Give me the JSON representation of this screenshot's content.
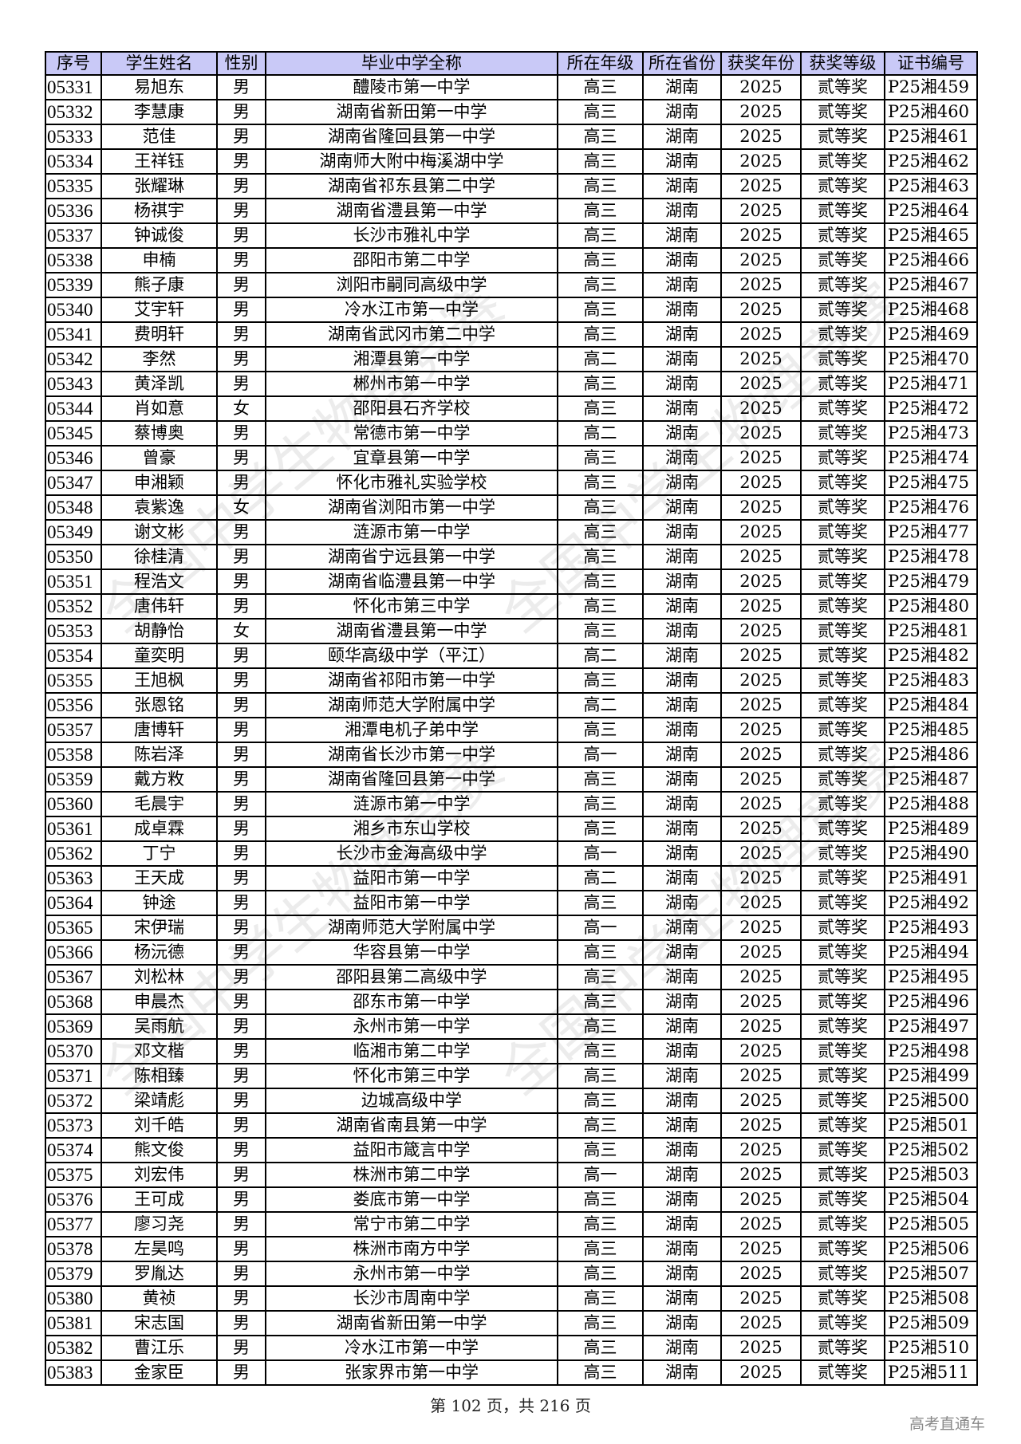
{
  "table": {
    "headers": [
      "序号",
      "学生姓名",
      "性别",
      "毕业中学全称",
      "所在年级",
      "所在省份",
      "获奖年份",
      "获奖等级",
      "证书编号"
    ],
    "rows": [
      [
        "05331",
        "易旭东",
        "男",
        "醴陵市第一中学",
        "高三",
        "湖南",
        "2025",
        "贰等奖",
        "P25湘459"
      ],
      [
        "05332",
        "李慧康",
        "男",
        "湖南省新田第一中学",
        "高三",
        "湖南",
        "2025",
        "贰等奖",
        "P25湘460"
      ],
      [
        "05333",
        "范佳",
        "男",
        "湖南省隆回县第一中学",
        "高三",
        "湖南",
        "2025",
        "贰等奖",
        "P25湘461"
      ],
      [
        "05334",
        "王祥钰",
        "男",
        "湖南师大附中梅溪湖中学",
        "高三",
        "湖南",
        "2025",
        "贰等奖",
        "P25湘462"
      ],
      [
        "05335",
        "张耀琳",
        "男",
        "湖南省祁东县第二中学",
        "高三",
        "湖南",
        "2025",
        "贰等奖",
        "P25湘463"
      ],
      [
        "05336",
        "杨祺宇",
        "男",
        "湖南省澧县第一中学",
        "高三",
        "湖南",
        "2025",
        "贰等奖",
        "P25湘464"
      ],
      [
        "05337",
        "钟诚俊",
        "男",
        "长沙市雅礼中学",
        "高三",
        "湖南",
        "2025",
        "贰等奖",
        "P25湘465"
      ],
      [
        "05338",
        "申楠",
        "男",
        "邵阳市第二中学",
        "高三",
        "湖南",
        "2025",
        "贰等奖",
        "P25湘466"
      ],
      [
        "05339",
        "熊子康",
        "男",
        "浏阳市嗣同高级中学",
        "高三",
        "湖南",
        "2025",
        "贰等奖",
        "P25湘467"
      ],
      [
        "05340",
        "艾宇轩",
        "男",
        "冷水江市第一中学",
        "高三",
        "湖南",
        "2025",
        "贰等奖",
        "P25湘468"
      ],
      [
        "05341",
        "费明轩",
        "男",
        "湖南省武冈市第二中学",
        "高三",
        "湖南",
        "2025",
        "贰等奖",
        "P25湘469"
      ],
      [
        "05342",
        "李然",
        "男",
        "湘潭县第一中学",
        "高二",
        "湖南",
        "2025",
        "贰等奖",
        "P25湘470"
      ],
      [
        "05343",
        "黄泽凯",
        "男",
        "郴州市第一中学",
        "高三",
        "湖南",
        "2025",
        "贰等奖",
        "P25湘471"
      ],
      [
        "05344",
        "肖如意",
        "女",
        "邵阳县石齐学校",
        "高三",
        "湖南",
        "2025",
        "贰等奖",
        "P25湘472"
      ],
      [
        "05345",
        "蔡博奥",
        "男",
        "常德市第一中学",
        "高二",
        "湖南",
        "2025",
        "贰等奖",
        "P25湘473"
      ],
      [
        "05346",
        "曾豪",
        "男",
        "宜章县第一中学",
        "高三",
        "湖南",
        "2025",
        "贰等奖",
        "P25湘474"
      ],
      [
        "05347",
        "申湘颖",
        "男",
        "怀化市雅礼实验学校",
        "高三",
        "湖南",
        "2025",
        "贰等奖",
        "P25湘475"
      ],
      [
        "05348",
        "袁紫逸",
        "女",
        "湖南省浏阳市第一中学",
        "高三",
        "湖南",
        "2025",
        "贰等奖",
        "P25湘476"
      ],
      [
        "05349",
        "谢文彬",
        "男",
        "涟源市第一中学",
        "高三",
        "湖南",
        "2025",
        "贰等奖",
        "P25湘477"
      ],
      [
        "05350",
        "徐桂清",
        "男",
        "湖南省宁远县第一中学",
        "高三",
        "湖南",
        "2025",
        "贰等奖",
        "P25湘478"
      ],
      [
        "05351",
        "程浩文",
        "男",
        "湖南省临澧县第一中学",
        "高三",
        "湖南",
        "2025",
        "贰等奖",
        "P25湘479"
      ],
      [
        "05352",
        "唐伟轩",
        "男",
        "怀化市第三中学",
        "高三",
        "湖南",
        "2025",
        "贰等奖",
        "P25湘480"
      ],
      [
        "05353",
        "胡静怡",
        "女",
        "湖南省澧县第一中学",
        "高三",
        "湖南",
        "2025",
        "贰等奖",
        "P25湘481"
      ],
      [
        "05354",
        "童奕明",
        "男",
        "颐华高级中学（平江）",
        "高二",
        "湖南",
        "2025",
        "贰等奖",
        "P25湘482"
      ],
      [
        "05355",
        "王旭枫",
        "男",
        "湖南省祁阳市第一中学",
        "高三",
        "湖南",
        "2025",
        "贰等奖",
        "P25湘483"
      ],
      [
        "05356",
        "张恩铭",
        "男",
        "湖南师范大学附属中学",
        "高二",
        "湖南",
        "2025",
        "贰等奖",
        "P25湘484"
      ],
      [
        "05357",
        "唐博轩",
        "男",
        "湘潭电机子弟中学",
        "高三",
        "湖南",
        "2025",
        "贰等奖",
        "P25湘485"
      ],
      [
        "05358",
        "陈岩泽",
        "男",
        "湖南省长沙市第一中学",
        "高一",
        "湖南",
        "2025",
        "贰等奖",
        "P25湘486"
      ],
      [
        "05359",
        "戴方敉",
        "男",
        "湖南省隆回县第一中学",
        "高三",
        "湖南",
        "2025",
        "贰等奖",
        "P25湘487"
      ],
      [
        "05360",
        "毛晨宇",
        "男",
        "涟源市第一中学",
        "高三",
        "湖南",
        "2025",
        "贰等奖",
        "P25湘488"
      ],
      [
        "05361",
        "成卓霖",
        "男",
        "湘乡市东山学校",
        "高三",
        "湖南",
        "2025",
        "贰等奖",
        "P25湘489"
      ],
      [
        "05362",
        "丁宁",
        "男",
        "长沙市金海高级中学",
        "高一",
        "湖南",
        "2025",
        "贰等奖",
        "P25湘490"
      ],
      [
        "05363",
        "王天成",
        "男",
        "益阳市第一中学",
        "高二",
        "湖南",
        "2025",
        "贰等奖",
        "P25湘491"
      ],
      [
        "05364",
        "钟途",
        "男",
        "益阳市第一中学",
        "高三",
        "湖南",
        "2025",
        "贰等奖",
        "P25湘492"
      ],
      [
        "05365",
        "宋伊瑞",
        "男",
        "湖南师范大学附属中学",
        "高一",
        "湖南",
        "2025",
        "贰等奖",
        "P25湘493"
      ],
      [
        "05366",
        "杨沅德",
        "男",
        "华容县第一中学",
        "高三",
        "湖南",
        "2025",
        "贰等奖",
        "P25湘494"
      ],
      [
        "05367",
        "刘松林",
        "男",
        "邵阳县第二高级中学",
        "高三",
        "湖南",
        "2025",
        "贰等奖",
        "P25湘495"
      ],
      [
        "05368",
        "申晨杰",
        "男",
        "邵东市第一中学",
        "高三",
        "湖南",
        "2025",
        "贰等奖",
        "P25湘496"
      ],
      [
        "05369",
        "吴雨航",
        "男",
        "永州市第一中学",
        "高三",
        "湖南",
        "2025",
        "贰等奖",
        "P25湘497"
      ],
      [
        "05370",
        "邓文楷",
        "男",
        "临湘市第二中学",
        "高三",
        "湖南",
        "2025",
        "贰等奖",
        "P25湘498"
      ],
      [
        "05371",
        "陈相臻",
        "男",
        "怀化市第三中学",
        "高三",
        "湖南",
        "2025",
        "贰等奖",
        "P25湘499"
      ],
      [
        "05372",
        "梁靖彪",
        "男",
        "边城高级中学",
        "高三",
        "湖南",
        "2025",
        "贰等奖",
        "P25湘500"
      ],
      [
        "05373",
        "刘千皓",
        "男",
        "湖南省南县第一中学",
        "高三",
        "湖南",
        "2025",
        "贰等奖",
        "P25湘501"
      ],
      [
        "05374",
        "熊文俊",
        "男",
        "益阳市箴言中学",
        "高三",
        "湖南",
        "2025",
        "贰等奖",
        "P25湘502"
      ],
      [
        "05375",
        "刘宏伟",
        "男",
        "株洲市第二中学",
        "高一",
        "湖南",
        "2025",
        "贰等奖",
        "P25湘503"
      ],
      [
        "05376",
        "王可成",
        "男",
        "娄底市第一中学",
        "高三",
        "湖南",
        "2025",
        "贰等奖",
        "P25湘504"
      ],
      [
        "05377",
        "廖习尧",
        "男",
        "常宁市第二中学",
        "高三",
        "湖南",
        "2025",
        "贰等奖",
        "P25湘505"
      ],
      [
        "05378",
        "左昊鸣",
        "男",
        "株洲市南方中学",
        "高三",
        "湖南",
        "2025",
        "贰等奖",
        "P25湘506"
      ],
      [
        "05379",
        "罗胤达",
        "男",
        "永州市第一中学",
        "高三",
        "湖南",
        "2025",
        "贰等奖",
        "P25湘507"
      ],
      [
        "05380",
        "黄祯",
        "男",
        "长沙市周南中学",
        "高三",
        "湖南",
        "2025",
        "贰等奖",
        "P25湘508"
      ],
      [
        "05381",
        "宋志国",
        "男",
        "湖南省新田第一中学",
        "高三",
        "湖南",
        "2025",
        "贰等奖",
        "P25湘509"
      ],
      [
        "05382",
        "曹江乐",
        "男",
        "冷水江市第一中学",
        "高三",
        "湖南",
        "2025",
        "贰等奖",
        "P25湘510"
      ],
      [
        "05383",
        "金家臣",
        "男",
        "张家界市第一中学",
        "高三",
        "湖南",
        "2025",
        "贰等奖",
        "P25湘511"
      ]
    ]
  },
  "footer": {
    "page_info": "第 102 页，共 216 页"
  },
  "brand": "高考直通车",
  "watermark": {
    "text": "全国中学生物理竞赛",
    "society": "中国物理学会 Chinese Physical Society"
  },
  "colors": {
    "header_bg": "#c9c9f7",
    "border": "#000000"
  }
}
